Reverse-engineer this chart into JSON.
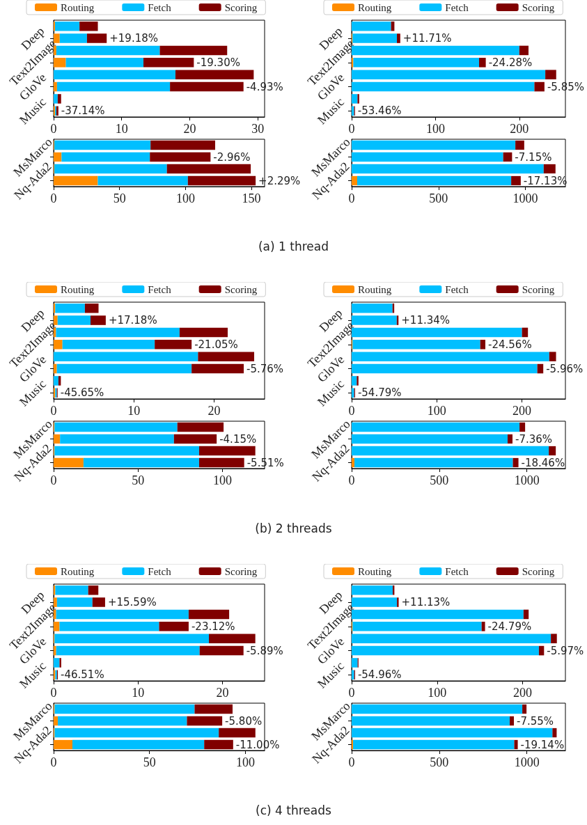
{
  "chart_data": [
    {
      "type": "bar",
      "orientation": "horizontal",
      "stacked": true,
      "legend": "top",
      "categories": [
        null,
        "Deep",
        null,
        "Text2Image",
        null,
        "GloVe",
        null,
        "Music"
      ],
      "xlim": [
        0,
        31
      ],
      "xticks": [
        0,
        10,
        20,
        30
      ],
      "series": [
        {
          "name": "Routing",
          "color": "#ff8c00",
          "values": [
            0.2,
            0.9,
            0.4,
            1.8,
            0,
            0.5,
            0,
            0.2
          ]
        },
        {
          "name": "Fetch",
          "color": "#00bfff",
          "values": [
            3.6,
            4.0,
            15.2,
            11.4,
            17.9,
            16.6,
            0.6,
            0.2
          ]
        },
        {
          "name": "Scoring",
          "color": "#800000",
          "values": [
            2.7,
            2.9,
            9.9,
            7.4,
            11.5,
            10.8,
            0.5,
            0.3
          ]
        }
      ],
      "annotations": [
        {
          "text": "+19.18%",
          "x": 7.8,
          "y": "Deep"
        },
        {
          "text": "-19.30%",
          "x": 20.6,
          "y": "Text2Image"
        },
        {
          "text": "-4.93%",
          "x": 27.9,
          "y": "GloVe"
        },
        {
          "text": "-37.14%",
          "x": 0.7,
          "y": "Music"
        }
      ]
    },
    {
      "type": "bar",
      "orientation": "horizontal",
      "stacked": true,
      "legend": "top",
      "categories": [
        null,
        "Deep",
        null,
        "Text2Image",
        null,
        "GloVe",
        null,
        "Music"
      ],
      "xlim": [
        0,
        255
      ],
      "xticks": [
        0,
        100,
        200
      ],
      "series": [
        {
          "name": "Routing",
          "color": "#ff8c00",
          "values": [
            0,
            1,
            0,
            2,
            0,
            0,
            0,
            0
          ]
        },
        {
          "name": "Fetch",
          "color": "#00bfff",
          "values": [
            47,
            53,
            200,
            150,
            231,
            218,
            7,
            3
          ]
        },
        {
          "name": "Scoring",
          "color": "#800000",
          "values": [
            4,
            4,
            11,
            8,
            13,
            12,
            2,
            1
          ]
        }
      ],
      "annotations": [
        {
          "text": "+11.71%",
          "x": 58,
          "y": "Deep"
        },
        {
          "text": "-24.28%",
          "x": 160,
          "y": "Text2Image"
        },
        {
          "text": "-5.85%",
          "x": 230,
          "y": "GloVe"
        },
        {
          "text": "-53.46%",
          "x": 4,
          "y": "Music"
        }
      ]
    },
    {
      "type": "bar",
      "orientation": "horizontal",
      "stacked": true,
      "categories": [
        null,
        "MsMarco",
        null,
        "Nq-Ada2"
      ],
      "xlim": [
        0,
        160
      ],
      "xticks": [
        0,
        50,
        100,
        150
      ],
      "series": [
        {
          "color": "#ff8c00",
          "values": [
            0.5,
            6,
            0.5,
            33.5
          ]
        },
        {
          "color": "#00bfff",
          "values": [
            73,
            67,
            85.4,
            68.3
          ]
        },
        {
          "color": "#800000",
          "values": [
            49,
            46,
            63.6,
            51.4
          ]
        }
      ],
      "annotations": [
        {
          "text": "-2.96%",
          "x": 119,
          "y": "MsMarco"
        },
        {
          "text": "+2.29%",
          "x": 153.2,
          "y": "Nq-Ada2"
        },
        "(a) 1 thread"
      ]
    },
    {
      "type": "bar",
      "orientation": "horizontal",
      "stacked": true,
      "categories": [
        null,
        "MsMarco",
        null,
        "Nq-Ada2"
      ],
      "xlim": [
        0,
        1230
      ],
      "xticks": [
        0,
        500,
        1000
      ],
      "series": [
        {
          "color": "#ff8c00",
          "values": [
            0,
            0,
            0,
            32
          ]
        },
        {
          "color": "#00bfff",
          "values": [
            942,
            872,
            1105,
            886
          ]
        },
        {
          "color": "#800000",
          "values": [
            51,
            51,
            68,
            55
          ]
        }
      ],
      "annotations": [
        {
          "text": "-7.15%",
          "x": 923,
          "y": "MsMarco"
        },
        {
          "text": "-17.13%",
          "x": 973,
          "y": "Nq-Ada2"
        }
      ]
    },
    {
      "type": "bar",
      "orientation": "horizontal",
      "stacked": true,
      "legend": "top",
      "categories": [
        null,
        "Deep",
        null,
        "Text2Image",
        null,
        "GloVe",
        null,
        "Music"
      ],
      "xlim": [
        0,
        26.3
      ],
      "xticks": [
        0,
        10,
        20
      ],
      "series": [
        {
          "name": "Routing",
          "color": "#ff8c00",
          "values": [
            0.2,
            0.5,
            0.3,
            1.1,
            0,
            0.4,
            0,
            0.2
          ]
        },
        {
          "name": "Fetch",
          "color": "#00bfff",
          "values": [
            3.7,
            4.1,
            15.4,
            11.5,
            18.0,
            16.8,
            0.6,
            0.2
          ]
        },
        {
          "name": "Scoring",
          "color": "#800000",
          "values": [
            1.7,
            1.9,
            6.0,
            4.6,
            7.0,
            6.5,
            0.3,
            0.1
          ]
        }
      ],
      "annotations": [
        {
          "text": "+17.18%",
          "x": 6.5,
          "y": "Deep"
        },
        {
          "text": "-21.05%",
          "x": 17.2,
          "y": "Text2Image"
        },
        {
          "text": "-5.76%",
          "x": 23.7,
          "y": "GloVe"
        },
        {
          "text": "-45.65%",
          "x": 0.5,
          "y": "Music"
        }
      ]
    },
    {
      "type": "bar",
      "orientation": "horizontal",
      "stacked": true,
      "legend": "top",
      "categories": [
        null,
        "Deep",
        null,
        "Text2Image",
        null,
        "GloVe",
        null,
        "Music"
      ],
      "xlim": [
        0,
        251
      ],
      "xticks": [
        0,
        100,
        200
      ],
      "series": [
        {
          "name": "Routing",
          "color": "#ff8c00",
          "values": [
            0,
            0,
            0,
            1,
            0,
            0,
            0,
            0
          ]
        },
        {
          "name": "Fetch",
          "color": "#00bfff",
          "values": [
            48,
            53,
            200,
            150,
            232,
            218,
            6,
            3
          ]
        },
        {
          "name": "Scoring",
          "color": "#800000",
          "values": [
            2,
            2,
            7,
            6,
            8,
            7,
            2,
            1
          ]
        }
      ],
      "annotations": [
        {
          "text": "+11.34%",
          "x": 55,
          "y": "Deep"
        },
        {
          "text": "-24.56%",
          "x": 157,
          "y": "Text2Image"
        },
        {
          "text": "-5.96%",
          "x": 225,
          "y": "GloVe"
        },
        {
          "text": "-54.79%",
          "x": 4,
          "y": "Music"
        }
      ]
    },
    {
      "type": "bar",
      "orientation": "horizontal",
      "stacked": true,
      "categories": [
        null,
        "MsMarco",
        null,
        "Nq-Ada2"
      ],
      "xlim": [
        0,
        125
      ],
      "xticks": [
        0,
        50,
        100
      ],
      "series": [
        {
          "color": "#ff8c00",
          "values": [
            0.5,
            3.8,
            0.5,
            17.7
          ]
        },
        {
          "color": "#00bfff",
          "values": [
            72.8,
            67.5,
            85.7,
            68.5
          ]
        },
        {
          "color": "#800000",
          "values": [
            27.4,
            25.3,
            33.3,
            26.7
          ]
        }
      ],
      "annotations": [
        {
          "text": "-4.15%",
          "x": 96.6,
          "y": "MsMarco"
        },
        {
          "text": "-5.51%",
          "x": 112.9,
          "y": "Nq-Ada2"
        },
        "(b) 2 threads"
      ]
    },
    {
      "type": "bar",
      "orientation": "horizontal",
      "stacked": true,
      "categories": [
        null,
        "MsMarco",
        null,
        "Nq-Ada2"
      ],
      "xlim": [
        0,
        1220
      ],
      "xticks": [
        0,
        500,
        1000
      ],
      "series": [
        {
          "color": "#ff8c00",
          "values": [
            0,
            0,
            0,
            16
          ]
        },
        {
          "color": "#00bfff",
          "values": [
            958,
            890,
            1125,
            904
          ]
        },
        {
          "color": "#800000",
          "values": [
            32,
            28,
            40,
            32
          ]
        }
      ],
      "annotations": [
        {
          "text": "-7.36%",
          "x": 918,
          "y": "MsMarco"
        },
        {
          "text": "-18.46%",
          "x": 952,
          "y": "Nq-Ada2"
        }
      ]
    },
    {
      "type": "bar",
      "orientation": "horizontal",
      "stacked": true,
      "legend": "top",
      "categories": [
        null,
        "Deep",
        null,
        "Text2Image",
        null,
        "GloVe",
        null,
        "Music"
      ],
      "xlim": [
        0,
        25
      ],
      "xticks": [
        0,
        10,
        20
      ],
      "series": [
        {
          "name": "Routing",
          "color": "#ff8c00",
          "values": [
            0.2,
            0.4,
            0.3,
            0.7,
            0.1,
            0.3,
            0,
            0.2
          ]
        },
        {
          "name": "Fetch",
          "color": "#00bfff",
          "values": [
            3.9,
            4.2,
            15.7,
            11.8,
            18.3,
            17.0,
            0.7,
            0.2
          ]
        },
        {
          "name": "Scoring",
          "color": "#800000",
          "values": [
            1.2,
            1.5,
            4.8,
            3.5,
            5.5,
            5.2,
            0.2,
            0.1
          ]
        }
      ],
      "annotations": [
        {
          "text": "+15.59%",
          "x": 6.1,
          "y": "Deep"
        },
        {
          "text": "-23.12%",
          "x": 16.0,
          "y": "Text2Image"
        },
        {
          "text": "-5.89%",
          "x": 22.5,
          "y": "GloVe"
        },
        {
          "text": "-46.51%",
          "x": 0.5,
          "y": "Music"
        }
      ]
    },
    {
      "type": "bar",
      "orientation": "horizontal",
      "stacked": true,
      "legend": "top",
      "categories": [
        null,
        "Deep",
        null,
        "Text2Image",
        null,
        "GloVe",
        null,
        "Music"
      ],
      "xlim": [
        0,
        250
      ],
      "xticks": [
        0,
        100,
        200
      ],
      "series": [
        {
          "name": "Routing",
          "color": "#ff8c00",
          "values": [
            0,
            0,
            0,
            1,
            0,
            0,
            0,
            0
          ]
        },
        {
          "name": "Fetch",
          "color": "#00bfff",
          "values": [
            48,
            53,
            201,
            151,
            233,
            219,
            7,
            3
          ]
        },
        {
          "name": "Scoring",
          "color": "#800000",
          "values": [
            2,
            2,
            6,
            4,
            7,
            6,
            1,
            1
          ]
        }
      ],
      "annotations": [
        {
          "text": "+11.13%",
          "x": 55,
          "y": "Deep"
        },
        {
          "text": "-24.79%",
          "x": 156,
          "y": "Text2Image"
        },
        {
          "text": "-5.97%",
          "x": 225,
          "y": "GloVe"
        },
        {
          "text": "-54.96%",
          "x": 4,
          "y": "Music"
        }
      ]
    },
    {
      "type": "bar",
      "orientation": "horizontal",
      "stacked": true,
      "categories": [
        null,
        "MsMarco",
        null,
        "Nq-Ada2"
      ],
      "xlim": [
        0,
        110
      ],
      "xticks": [
        0,
        50,
        100
      ],
      "series": [
        {
          "color": "#ff8c00",
          "values": [
            0.5,
            2.2,
            0.5,
            9.8
          ]
        },
        {
          "color": "#00bfff",
          "values": [
            73,
            67.3,
            85.6,
            68.7
          ]
        },
        {
          "color": "#800000",
          "values": [
            19.8,
            18.4,
            19.1,
            15.1
          ]
        }
      ],
      "annotations": [
        {
          "text": "-5.80%",
          "x": 87.9,
          "y": "MsMarco"
        },
        {
          "text": "-11.00%",
          "x": 93.6,
          "y": "Nq-Ada2"
        },
        "(c) 4 threads"
      ]
    },
    {
      "type": "bar",
      "orientation": "horizontal",
      "stacked": true,
      "categories": [
        null,
        "MsMarco",
        null,
        "Nq-Ada2"
      ],
      "xlim": [
        0,
        1220
      ],
      "xticks": [
        0,
        500,
        1000
      ],
      "series": [
        {
          "color": "#ff8c00",
          "values": [
            0,
            0,
            0,
            8
          ]
        },
        {
          "color": "#00bfff",
          "values": [
            974,
            902,
            1146,
            920
          ]
        },
        {
          "color": "#800000",
          "values": [
            24,
            24,
            24,
            20
          ]
        }
      ],
      "annotations": [
        {
          "text": "-7.55%",
          "x": 926,
          "y": "MsMarco"
        },
        {
          "text": "-19.14%",
          "x": 948,
          "y": "Nq-Ada2"
        }
      ]
    }
  ]
}
